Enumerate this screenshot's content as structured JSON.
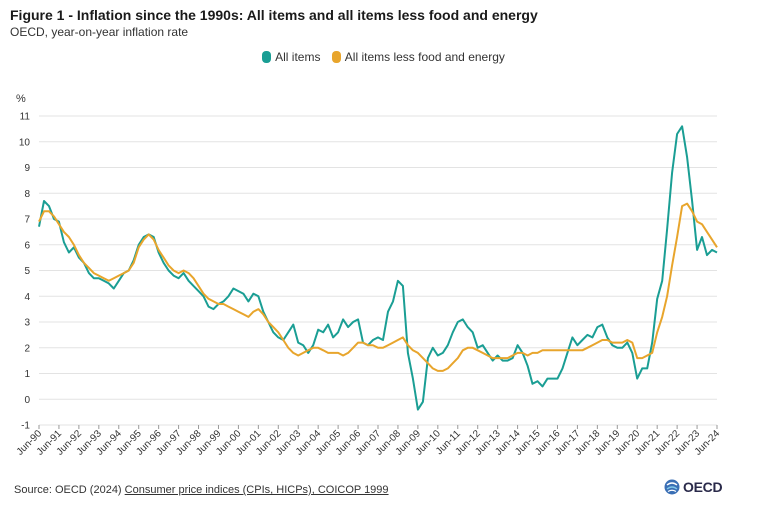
{
  "header": {
    "title": "Figure 1 - Inflation since the 1990s: All items and all items less food and energy",
    "subtitle": "OECD, year-on-year inflation rate"
  },
  "source": {
    "prefix": "Source: OECD (2024) ",
    "link_text": "Consumer price indices (CPIs, HICPs), COICOP 1999"
  },
  "logo": {
    "text": "OECD",
    "icon": "oecd-globe-icon"
  },
  "chart_data": {
    "type": "line",
    "title": "Figure 1 - Inflation since the 1990s: All items and all items less food and energy",
    "subtitle": "OECD, year-on-year inflation rate",
    "ylabel": "%",
    "xlabel": "",
    "ylim": [
      -1,
      11
    ],
    "yticks": [
      -1,
      0,
      1,
      2,
      3,
      4,
      5,
      6,
      7,
      8,
      9,
      10,
      11
    ],
    "grid": true,
    "legend_position": "top-center",
    "x_tick_labels": [
      "Jun-90",
      "Jun-91",
      "Jun-92",
      "Jun-93",
      "Jun-94",
      "Jun-95",
      "Jun-96",
      "Jun-97",
      "Jun-98",
      "Jun-99",
      "Jun-00",
      "Jun-01",
      "Jun-02",
      "Jun-03",
      "Jun-04",
      "Jun-05",
      "Jun-06",
      "Jun-07",
      "Jun-08",
      "Jun-09",
      "Jun-10",
      "Jun-11",
      "Jun-12",
      "Jun-13",
      "Jun-14",
      "Jun-15",
      "Jun-16",
      "Jun-17",
      "Jun-18",
      "Jun-19",
      "Jun-20",
      "Jun-21",
      "Jun-22",
      "Jun-23",
      "Jun-24"
    ],
    "series": [
      {
        "name": "All items",
        "color": "#1a9e94",
        "points": [
          [
            "1990-06",
            6.7
          ],
          [
            "1990-09",
            7.7
          ],
          [
            "1990-12",
            7.5
          ],
          [
            "1991-03",
            7.0
          ],
          [
            "1991-06",
            6.9
          ],
          [
            "1991-09",
            6.1
          ],
          [
            "1991-12",
            5.7
          ],
          [
            "1992-03",
            5.9
          ],
          [
            "1992-06",
            5.5
          ],
          [
            "1992-09",
            5.3
          ],
          [
            "1992-12",
            4.9
          ],
          [
            "1993-03",
            4.7
          ],
          [
            "1993-06",
            4.7
          ],
          [
            "1993-09",
            4.6
          ],
          [
            "1993-12",
            4.5
          ],
          [
            "1994-03",
            4.3
          ],
          [
            "1994-06",
            4.6
          ],
          [
            "1994-09",
            4.9
          ],
          [
            "1994-12",
            5.0
          ],
          [
            "1995-03",
            5.4
          ],
          [
            "1995-06",
            6.0
          ],
          [
            "1995-09",
            6.3
          ],
          [
            "1995-12",
            6.4
          ],
          [
            "1996-03",
            6.3
          ],
          [
            "1996-06",
            5.7
          ],
          [
            "1996-09",
            5.3
          ],
          [
            "1996-12",
            5.0
          ],
          [
            "1997-03",
            4.8
          ],
          [
            "1997-06",
            4.7
          ],
          [
            "1997-09",
            4.9
          ],
          [
            "1997-12",
            4.6
          ],
          [
            "1998-03",
            4.4
          ],
          [
            "1998-06",
            4.2
          ],
          [
            "1998-09",
            4.0
          ],
          [
            "1998-12",
            3.6
          ],
          [
            "1999-03",
            3.5
          ],
          [
            "1999-06",
            3.7
          ],
          [
            "1999-09",
            3.8
          ],
          [
            "1999-12",
            4.0
          ],
          [
            "2000-03",
            4.3
          ],
          [
            "2000-06",
            4.2
          ],
          [
            "2000-09",
            4.1
          ],
          [
            "2000-12",
            3.8
          ],
          [
            "2001-03",
            4.1
          ],
          [
            "2001-06",
            4.0
          ],
          [
            "2001-09",
            3.4
          ],
          [
            "2001-12",
            3.0
          ],
          [
            "2002-03",
            2.6
          ],
          [
            "2002-06",
            2.4
          ],
          [
            "2002-09",
            2.3
          ],
          [
            "2002-12",
            2.6
          ],
          [
            "2003-03",
            2.9
          ],
          [
            "2003-06",
            2.2
          ],
          [
            "2003-09",
            2.1
          ],
          [
            "2003-12",
            1.8
          ],
          [
            "2004-03",
            2.1
          ],
          [
            "2004-06",
            2.7
          ],
          [
            "2004-09",
            2.6
          ],
          [
            "2004-12",
            2.9
          ],
          [
            "2005-03",
            2.4
          ],
          [
            "2005-06",
            2.6
          ],
          [
            "2005-09",
            3.1
          ],
          [
            "2005-12",
            2.8
          ],
          [
            "2006-03",
            3.0
          ],
          [
            "2006-06",
            3.1
          ],
          [
            "2006-09",
            2.2
          ],
          [
            "2006-12",
            2.1
          ],
          [
            "2007-03",
            2.3
          ],
          [
            "2007-06",
            2.4
          ],
          [
            "2007-09",
            2.3
          ],
          [
            "2007-12",
            3.4
          ],
          [
            "2008-03",
            3.8
          ],
          [
            "2008-06",
            4.6
          ],
          [
            "2008-09",
            4.4
          ],
          [
            "2008-12",
            1.8
          ],
          [
            "2009-03",
            0.8
          ],
          [
            "2009-06",
            -0.4
          ],
          [
            "2009-09",
            -0.1
          ],
          [
            "2009-12",
            1.6
          ],
          [
            "2010-03",
            2.0
          ],
          [
            "2010-06",
            1.7
          ],
          [
            "2010-09",
            1.8
          ],
          [
            "2010-12",
            2.1
          ],
          [
            "2011-03",
            2.6
          ],
          [
            "2011-06",
            3.0
          ],
          [
            "2011-09",
            3.1
          ],
          [
            "2011-12",
            2.8
          ],
          [
            "2012-03",
            2.6
          ],
          [
            "2012-06",
            2.0
          ],
          [
            "2012-09",
            2.1
          ],
          [
            "2012-12",
            1.8
          ],
          [
            "2013-03",
            1.5
          ],
          [
            "2013-06",
            1.7
          ],
          [
            "2013-09",
            1.5
          ],
          [
            "2013-12",
            1.5
          ],
          [
            "2014-03",
            1.6
          ],
          [
            "2014-06",
            2.1
          ],
          [
            "2014-09",
            1.8
          ],
          [
            "2014-12",
            1.3
          ],
          [
            "2015-03",
            0.6
          ],
          [
            "2015-06",
            0.7
          ],
          [
            "2015-09",
            0.5
          ],
          [
            "2015-12",
            0.8
          ],
          [
            "2016-03",
            0.8
          ],
          [
            "2016-06",
            0.8
          ],
          [
            "2016-09",
            1.2
          ],
          [
            "2016-12",
            1.8
          ],
          [
            "2017-03",
            2.4
          ],
          [
            "2017-06",
            2.1
          ],
          [
            "2017-09",
            2.3
          ],
          [
            "2017-12",
            2.5
          ],
          [
            "2018-03",
            2.4
          ],
          [
            "2018-06",
            2.8
          ],
          [
            "2018-09",
            2.9
          ],
          [
            "2018-12",
            2.4
          ],
          [
            "2019-03",
            2.1
          ],
          [
            "2019-06",
            2.0
          ],
          [
            "2019-09",
            2.0
          ],
          [
            "2019-12",
            2.2
          ],
          [
            "2020-03",
            1.8
          ],
          [
            "2020-06",
            0.8
          ],
          [
            "2020-09",
            1.2
          ],
          [
            "2020-12",
            1.2
          ],
          [
            "2021-03",
            2.2
          ],
          [
            "2021-06",
            3.9
          ],
          [
            "2021-09",
            4.6
          ],
          [
            "2021-12",
            6.6
          ],
          [
            "2022-03",
            8.8
          ],
          [
            "2022-06",
            10.3
          ],
          [
            "2022-09",
            10.6
          ],
          [
            "2022-12",
            9.4
          ],
          [
            "2023-03",
            7.7
          ],
          [
            "2023-06",
            5.8
          ],
          [
            "2023-09",
            6.3
          ],
          [
            "2023-12",
            5.6
          ],
          [
            "2024-03",
            5.8
          ],
          [
            "2024-06",
            5.7
          ]
        ]
      },
      {
        "name": "All items less food and energy",
        "color": "#e8a52c",
        "points": [
          [
            "1990-06",
            6.9
          ],
          [
            "1990-09",
            7.3
          ],
          [
            "1990-12",
            7.3
          ],
          [
            "1991-03",
            7.1
          ],
          [
            "1991-06",
            6.8
          ],
          [
            "1991-09",
            6.5
          ],
          [
            "1991-12",
            6.3
          ],
          [
            "1992-03",
            6.0
          ],
          [
            "1992-06",
            5.6
          ],
          [
            "1992-09",
            5.3
          ],
          [
            "1992-12",
            5.1
          ],
          [
            "1993-03",
            4.9
          ],
          [
            "1993-06",
            4.8
          ],
          [
            "1993-09",
            4.7
          ],
          [
            "1993-12",
            4.6
          ],
          [
            "1994-03",
            4.7
          ],
          [
            "1994-06",
            4.8
          ],
          [
            "1994-09",
            4.9
          ],
          [
            "1994-12",
            5.0
          ],
          [
            "1995-03",
            5.3
          ],
          [
            "1995-06",
            5.9
          ],
          [
            "1995-09",
            6.2
          ],
          [
            "1995-12",
            6.4
          ],
          [
            "1996-03",
            6.2
          ],
          [
            "1996-06",
            5.8
          ],
          [
            "1996-09",
            5.5
          ],
          [
            "1996-12",
            5.2
          ],
          [
            "1997-03",
            5.0
          ],
          [
            "1997-06",
            4.9
          ],
          [
            "1997-09",
            5.0
          ],
          [
            "1997-12",
            4.9
          ],
          [
            "1998-03",
            4.7
          ],
          [
            "1998-06",
            4.4
          ],
          [
            "1998-09",
            4.1
          ],
          [
            "1998-12",
            3.9
          ],
          [
            "1999-03",
            3.8
          ],
          [
            "1999-06",
            3.7
          ],
          [
            "1999-09",
            3.7
          ],
          [
            "1999-12",
            3.6
          ],
          [
            "2000-03",
            3.5
          ],
          [
            "2000-06",
            3.4
          ],
          [
            "2000-09",
            3.3
          ],
          [
            "2000-12",
            3.2
          ],
          [
            "2001-03",
            3.4
          ],
          [
            "2001-06",
            3.5
          ],
          [
            "2001-09",
            3.3
          ],
          [
            "2001-12",
            3.0
          ],
          [
            "2002-03",
            2.8
          ],
          [
            "2002-06",
            2.6
          ],
          [
            "2002-09",
            2.3
          ],
          [
            "2002-12",
            2.0
          ],
          [
            "2003-03",
            1.8
          ],
          [
            "2003-06",
            1.7
          ],
          [
            "2003-09",
            1.8
          ],
          [
            "2003-12",
            1.9
          ],
          [
            "2004-03",
            2.0
          ],
          [
            "2004-06",
            2.0
          ],
          [
            "2004-09",
            1.9
          ],
          [
            "2004-12",
            1.8
          ],
          [
            "2005-03",
            1.8
          ],
          [
            "2005-06",
            1.8
          ],
          [
            "2005-09",
            1.7
          ],
          [
            "2005-12",
            1.8
          ],
          [
            "2006-03",
            2.0
          ],
          [
            "2006-06",
            2.2
          ],
          [
            "2006-09",
            2.2
          ],
          [
            "2006-12",
            2.1
          ],
          [
            "2007-03",
            2.1
          ],
          [
            "2007-06",
            2.0
          ],
          [
            "2007-09",
            2.0
          ],
          [
            "2007-12",
            2.1
          ],
          [
            "2008-03",
            2.2
          ],
          [
            "2008-06",
            2.3
          ],
          [
            "2008-09",
            2.4
          ],
          [
            "2008-12",
            2.1
          ],
          [
            "2009-03",
            1.9
          ],
          [
            "2009-06",
            1.8
          ],
          [
            "2009-09",
            1.6
          ],
          [
            "2009-12",
            1.4
          ],
          [
            "2010-03",
            1.2
          ],
          [
            "2010-06",
            1.1
          ],
          [
            "2010-09",
            1.1
          ],
          [
            "2010-12",
            1.2
          ],
          [
            "2011-03",
            1.4
          ],
          [
            "2011-06",
            1.6
          ],
          [
            "2011-09",
            1.9
          ],
          [
            "2011-12",
            2.0
          ],
          [
            "2012-03",
            2.0
          ],
          [
            "2012-06",
            1.9
          ],
          [
            "2012-09",
            1.8
          ],
          [
            "2012-12",
            1.7
          ],
          [
            "2013-03",
            1.6
          ],
          [
            "2013-06",
            1.6
          ],
          [
            "2013-09",
            1.6
          ],
          [
            "2013-12",
            1.6
          ],
          [
            "2014-03",
            1.7
          ],
          [
            "2014-06",
            1.8
          ],
          [
            "2014-09",
            1.8
          ],
          [
            "2014-12",
            1.7
          ],
          [
            "2015-03",
            1.8
          ],
          [
            "2015-06",
            1.8
          ],
          [
            "2015-09",
            1.9
          ],
          [
            "2015-12",
            1.9
          ],
          [
            "2016-03",
            1.9
          ],
          [
            "2016-06",
            1.9
          ],
          [
            "2016-09",
            1.9
          ],
          [
            "2016-12",
            1.9
          ],
          [
            "2017-03",
            1.9
          ],
          [
            "2017-06",
            1.9
          ],
          [
            "2017-09",
            1.9
          ],
          [
            "2017-12",
            2.0
          ],
          [
            "2018-03",
            2.1
          ],
          [
            "2018-06",
            2.2
          ],
          [
            "2018-09",
            2.3
          ],
          [
            "2018-12",
            2.3
          ],
          [
            "2019-03",
            2.2
          ],
          [
            "2019-06",
            2.2
          ],
          [
            "2019-09",
            2.2
          ],
          [
            "2019-12",
            2.3
          ],
          [
            "2020-03",
            2.2
          ],
          [
            "2020-06",
            1.6
          ],
          [
            "2020-09",
            1.6
          ],
          [
            "2020-12",
            1.7
          ],
          [
            "2021-03",
            1.8
          ],
          [
            "2021-06",
            2.6
          ],
          [
            "2021-09",
            3.2
          ],
          [
            "2021-12",
            4.0
          ],
          [
            "2022-03",
            5.2
          ],
          [
            "2022-06",
            6.3
          ],
          [
            "2022-09",
            7.5
          ],
          [
            "2022-12",
            7.6
          ],
          [
            "2023-03",
            7.3
          ],
          [
            "2023-06",
            6.9
          ],
          [
            "2023-09",
            6.8
          ],
          [
            "2023-12",
            6.5
          ],
          [
            "2024-03",
            6.2
          ],
          [
            "2024-06",
            5.9
          ]
        ]
      }
    ]
  }
}
